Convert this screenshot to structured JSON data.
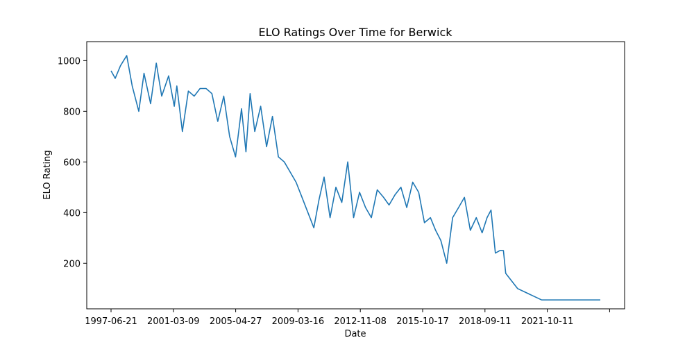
{
  "chart_data": {
    "type": "line",
    "title": "ELO Ratings Over Time for Berwick",
    "xlabel": "Date",
    "ylabel": "ELO Rating",
    "x_tick_labels": [
      "1997-06-21",
      "2001-03-09",
      "2005-04-27",
      "2009-03-16",
      "2012-11-08",
      "2015-10-17",
      "2018-09-11",
      "2021-10-11",
      ""
    ],
    "y_ticks": [
      200,
      400,
      600,
      800,
      1000
    ],
    "ylim": [
      20,
      1075
    ],
    "grid": false,
    "series": [
      {
        "name": "Berwick",
        "color": "#1f77b4",
        "x": [
          "1997-06-21",
          "1997-09-15",
          "1998-01-01",
          "1998-05-10",
          "1998-09-01",
          "1999-01-15",
          "1999-05-01",
          "1999-09-15",
          "2000-01-10",
          "2000-05-01",
          "2000-09-20",
          "2001-01-15",
          "2001-03-09",
          "2001-07-01",
          "2001-11-01",
          "2002-03-01",
          "2002-07-01",
          "2002-11-01",
          "2003-03-01",
          "2003-07-01",
          "2003-11-01",
          "2004-03-01",
          "2004-07-01",
          "2004-11-01",
          "2005-02-01",
          "2005-04-27",
          "2005-08-01",
          "2005-12-01",
          "2006-04-01",
          "2006-08-01",
          "2006-12-01",
          "2007-04-01",
          "2007-08-01",
          "2007-12-01",
          "2008-04-01",
          "2008-08-01",
          "2008-12-01",
          "2009-03-16",
          "2009-07-01",
          "2009-11-01",
          "2010-03-01",
          "2010-07-01",
          "2010-11-01",
          "2011-03-01",
          "2011-07-01",
          "2011-11-01",
          "2012-03-01",
          "2012-07-01",
          "2012-11-08",
          "2013-03-01",
          "2013-07-01",
          "2013-11-01",
          "2014-03-01",
          "2014-07-01",
          "2014-11-01",
          "2015-03-01",
          "2015-07-01",
          "2015-10-17",
          "2016-02-01",
          "2016-06-01",
          "2016-10-01",
          "2017-02-01",
          "2017-06-01",
          "2017-10-01",
          "2018-02-01",
          "2018-06-01",
          "2018-09-11",
          "2018-12-01",
          "2019-03-01",
          "2019-06-01",
          "2019-08-15",
          "2019-10-01",
          "2020-06-01",
          "2021-10-11",
          "2023-01-01",
          "2024-06-01",
          "2025-02-01"
        ],
        "values": [
          960,
          930,
          980,
          1020,
          900,
          800,
          950,
          830,
          990,
          860,
          940,
          820,
          900,
          720,
          880,
          860,
          890,
          890,
          870,
          760,
          860,
          700,
          620,
          810,
          640,
          870,
          720,
          820,
          660,
          780,
          620,
          600,
          560,
          520,
          460,
          400,
          340,
          450,
          540,
          380,
          500,
          440,
          600,
          380,
          480,
          420,
          380,
          490,
          460,
          430,
          470,
          500,
          420,
          520,
          480,
          360,
          380,
          330,
          290,
          200,
          380,
          420,
          460,
          330,
          380,
          320,
          380,
          410,
          240,
          250,
          250,
          160,
          100,
          55,
          55,
          55,
          55
        ]
      }
    ]
  }
}
